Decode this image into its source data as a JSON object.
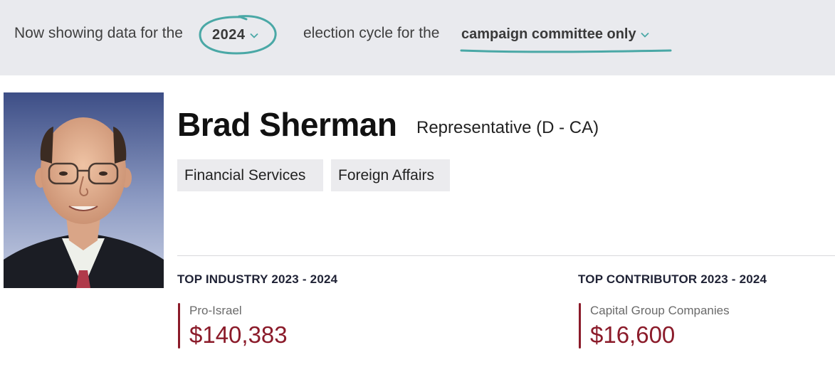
{
  "filter": {
    "prefix": "Now showing data for the",
    "year": "2024",
    "middle": "election cycle for the",
    "scope": "campaign committee only"
  },
  "profile": {
    "name": "Brad Sherman",
    "role": "Representative (D - CA)",
    "committees": [
      "Financial Services",
      "Foreign Affairs"
    ]
  },
  "stats": {
    "industry": {
      "heading": "TOP INDUSTRY 2023 - 2024",
      "label": "Pro-Israel",
      "value": "$140,383"
    },
    "contributor": {
      "heading": "TOP CONTRIBUTOR 2023 - 2024",
      "label": "Capital Group Companies",
      "value": "$16,600"
    }
  },
  "colors": {
    "accent": "#4aa8a6",
    "money": "#8b1b2a",
    "filter_bg": "#e9eaee"
  }
}
